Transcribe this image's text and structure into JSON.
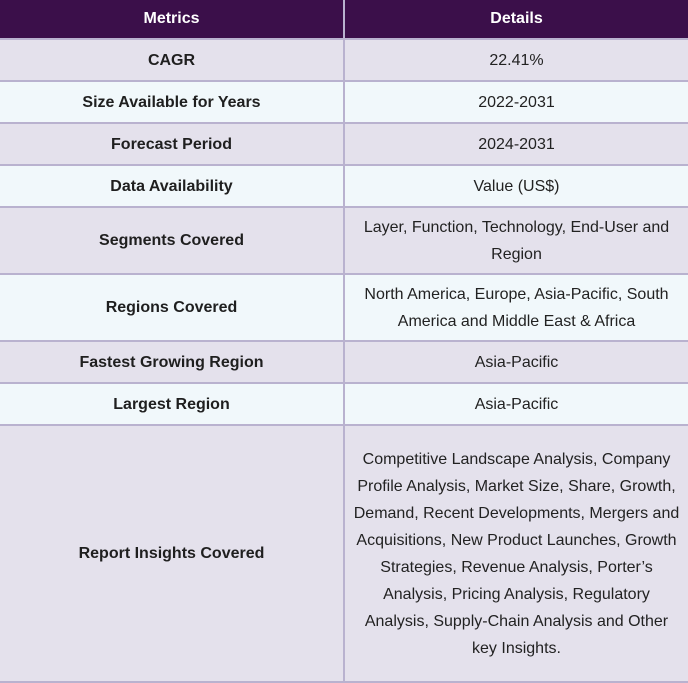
{
  "header": {
    "metrics": "Metrics",
    "details": "Details"
  },
  "rows": [
    {
      "metric": "CAGR",
      "detail": "22.41%"
    },
    {
      "metric": "Size Available for Years",
      "detail": "2022-2031"
    },
    {
      "metric": "Forecast Period",
      "detail": "2024-2031"
    },
    {
      "metric": "Data Availability",
      "detail": "Value (US$)"
    },
    {
      "metric": "Segments Covered",
      "detail": "Layer, Function, Technology, End-User and Region"
    },
    {
      "metric": "Regions Covered",
      "detail": "North America, Europe, Asia-Pacific, South America and Middle East & Africa"
    },
    {
      "metric": "Fastest Growing Region",
      "detail": "Asia-Pacific"
    },
    {
      "metric": "Largest Region",
      "detail": "Asia-Pacific"
    },
    {
      "metric": "Report Insights Covered",
      "detail": "Competitive Landscape Analysis, Company Profile Analysis, Market Size, Share, Growth, Demand, Recent Developments, Mergers and Acquisitions, New Product Launches, Growth Strategies, Revenue Analysis, Porter’s Analysis, Pricing Analysis, Regulatory Analysis, Supply-Chain Analysis and Other key Insights."
    }
  ]
}
